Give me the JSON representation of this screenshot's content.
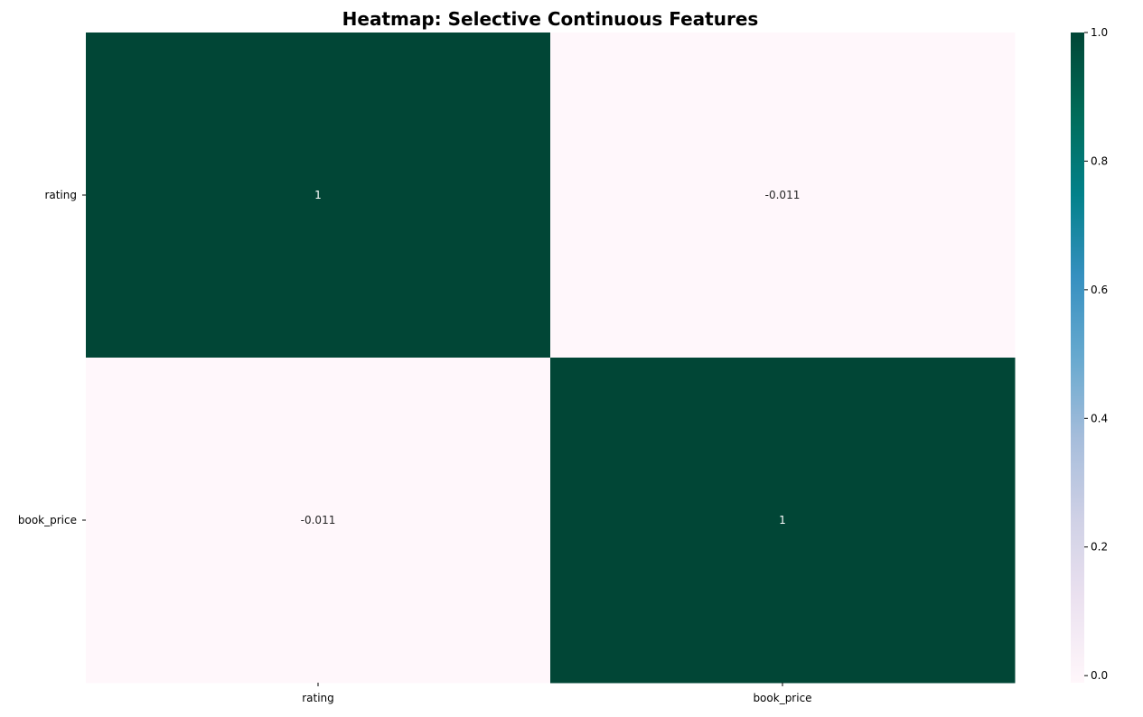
{
  "chart_data": {
    "type": "heatmap",
    "title": "Heatmap: Selective Continuous Features",
    "xlabel": "",
    "ylabel": "",
    "x_categories": [
      "rating",
      "book_price"
    ],
    "y_categories": [
      "rating",
      "book_price"
    ],
    "values": [
      [
        1,
        -0.011
      ],
      [
        -0.011,
        1
      ]
    ],
    "annotations": [
      [
        "1",
        "-0.011"
      ],
      [
        "-0.011",
        "1"
      ]
    ],
    "colormap": "PuBuGn",
    "color_stops": [
      "#fff7fb",
      "#ece2f0",
      "#d0d1e6",
      "#a6bddb",
      "#67a9cf",
      "#3690c0",
      "#02818a",
      "#016c59",
      "#014636"
    ],
    "vmin": -0.011,
    "vmax": 1,
    "colorbar": {
      "ticks": [
        0.0,
        0.2,
        0.4,
        0.6,
        0.8,
        1.0
      ],
      "tick_labels": [
        "0.0",
        "0.2",
        "0.4",
        "0.6",
        "0.8",
        "1.0"
      ],
      "placement": "right"
    },
    "annotation_colors": {
      "light_text": "#ffffff",
      "dark_text": "#262626"
    },
    "grid": false
  }
}
